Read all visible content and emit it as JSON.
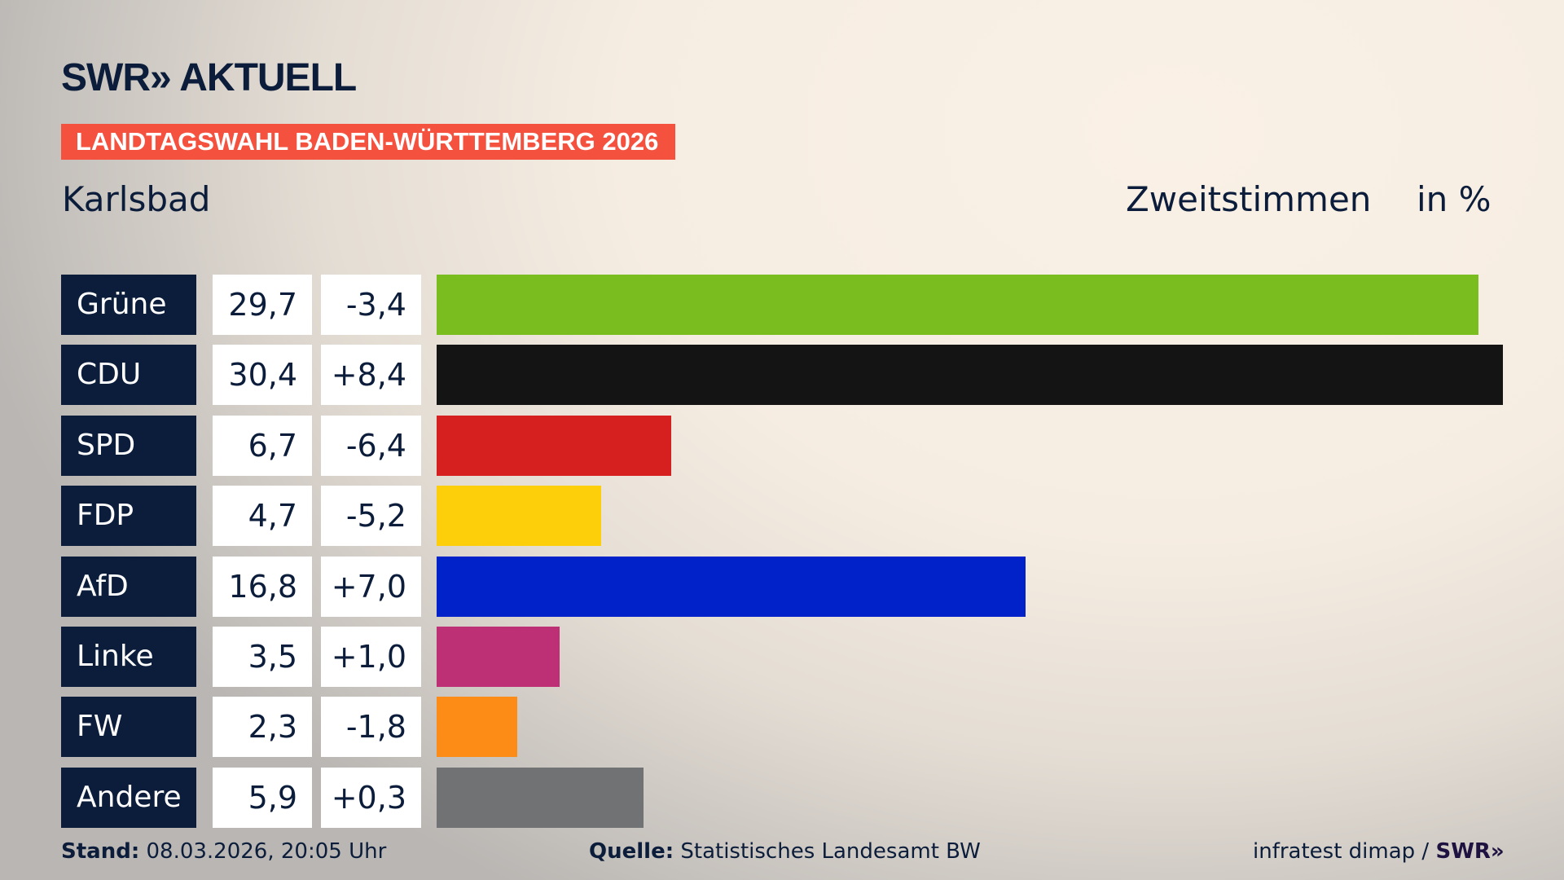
{
  "header": {
    "logo": "SWR» AKTUELL",
    "banner": "LANDTAGSWAHL BADEN-WÜRTTEMBERG 2026",
    "place": "Karlsbad",
    "metric": "Zweitstimmen",
    "unit": "in %"
  },
  "chart_data": {
    "type": "bar",
    "orientation": "horizontal",
    "categories": [
      "Grüne",
      "CDU",
      "SPD",
      "FDP",
      "AfD",
      "Linke",
      "FW",
      "Andere"
    ],
    "values": [
      29.7,
      30.4,
      6.7,
      4.7,
      16.8,
      3.5,
      2.3,
      5.9
    ],
    "value_labels": [
      "29,7",
      "30,4",
      "6,7",
      "4,7",
      "16,8",
      "3,5",
      "2,3",
      "5,9"
    ],
    "changes": [
      "-3,4",
      "+8,4",
      "-6,4",
      "-5,2",
      "+7,0",
      "+1,0",
      "-1,8",
      "+0,3"
    ],
    "colors": [
      "#7abd1e",
      "#141414",
      "#d6201f",
      "#fdcf0a",
      "#0022c8",
      "#bd3075",
      "#fc8c16",
      "#717273"
    ],
    "grid": false
  },
  "footer": {
    "stand_label": "Stand:",
    "stand_value": "08.03.2026, 20:05 Uhr",
    "source_label": "Quelle:",
    "source_value": "Statistisches Landesamt BW",
    "credit": "infratest dimap /",
    "credit_logo": "SWR»"
  }
}
